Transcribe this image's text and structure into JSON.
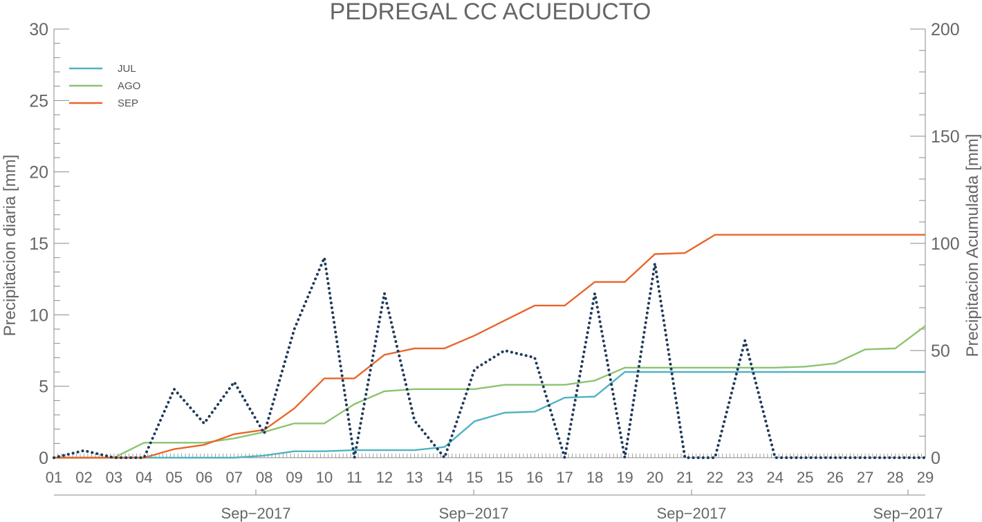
{
  "chart_data": {
    "type": "line",
    "title": "PEDREGAL CC ACUEDUCTO",
    "ylabel_left": "Precipitacion diaria [mm]",
    "ylabel_right": "Precipitacion Acumulada [mm]",
    "ylim_left": [
      0,
      30
    ],
    "ylim_right": [
      0,
      200
    ],
    "yticks_left": [
      0,
      5,
      10,
      15,
      20,
      25,
      30
    ],
    "yticks_right": [
      0,
      50,
      100,
      150,
      200
    ],
    "x_day_labels": [
      "01",
      "02",
      "03",
      "04",
      "05",
      "06",
      "07",
      "08",
      "09",
      "10",
      "11",
      "12",
      "13",
      "14",
      "15",
      "15",
      "16",
      "17",
      "18",
      "19",
      "20",
      "21",
      "22",
      "23",
      "24",
      "25",
      "26",
      "27",
      "28",
      "29"
    ],
    "x_month_labels": [
      "Sep−2017",
      "Sep−2017",
      "Sep−2017",
      "Sep−2017"
    ],
    "legend": {
      "position": "top-left"
    },
    "colors": {
      "JUL": "#4db3c2",
      "AGO": "#8cc36e",
      "SEP": "#e8652a",
      "daily": "#1f3b5a",
      "axis": "#888888",
      "text": "#666666"
    },
    "series": [
      {
        "name": "JUL",
        "axis": "right",
        "values": [
          0,
          0,
          0,
          0,
          0,
          0,
          0,
          1,
          3,
          3,
          3.5,
          3.5,
          3.5,
          5,
          17,
          21,
          21.5,
          28,
          28.5,
          40,
          40,
          40,
          40,
          40,
          40,
          40,
          40,
          40,
          40,
          40
        ]
      },
      {
        "name": "AGO",
        "axis": "right",
        "values": [
          0,
          0,
          0,
          7,
          7,
          7,
          9,
          12,
          16,
          16,
          25,
          31,
          32,
          32,
          32,
          34,
          34,
          34,
          36,
          42,
          42,
          42,
          42,
          42,
          42,
          42.5,
          44,
          50.5,
          51,
          61.5
        ]
      },
      {
        "name": "SEP",
        "axis": "right",
        "values": [
          0,
          0,
          0,
          0,
          4,
          6,
          11,
          13,
          23,
          37,
          37,
          48,
          51,
          51,
          57,
          64,
          71,
          71,
          82,
          82,
          95,
          95.5,
          104,
          104,
          104,
          104,
          104,
          104,
          104,
          104
        ]
      },
      {
        "name": "",
        "axis": "left",
        "style": "dotted",
        "values": [
          0,
          0.5,
          0,
          0,
          4.8,
          2.4,
          5.3,
          1.7,
          9,
          14,
          0,
          11.5,
          2.6,
          0,
          6.2,
          7.5,
          7,
          0,
          11.5,
          0,
          13.6,
          0,
          0,
          8.2,
          0,
          0,
          0,
          0,
          0,
          0
        ]
      }
    ]
  }
}
